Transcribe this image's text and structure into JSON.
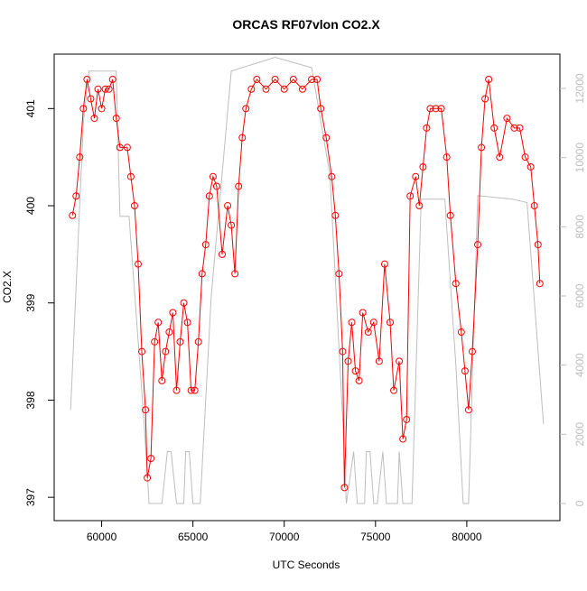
{
  "chart_data": {
    "type": "scatter",
    "title": "ORCAS RF07vlon CO2.X",
    "x_label": "UTC Seconds",
    "y_label": "CO2.X",
    "xlim": [
      57400,
      85100
    ],
    "xticks": [
      60000,
      65000,
      70000,
      75000,
      80000
    ],
    "ylim": [
      396.76,
      401.56
    ],
    "yticks": [
      397,
      398,
      399,
      400,
      401
    ],
    "y2lim": [
      -496,
      12991
    ],
    "y2ticks": [
      0,
      2000,
      4000,
      6000,
      8000,
      10000,
      12000
    ],
    "series": [
      {
        "color": "#ff0000",
        "x": [
          58400,
          58600,
          58800,
          59000,
          59200,
          59400,
          59600,
          59800,
          60000,
          60200,
          60400,
          60600,
          60800,
          61000,
          61400,
          61600,
          61800,
          62000,
          62200,
          62400,
          62500,
          62700,
          62900,
          63100,
          63300,
          63500,
          63700,
          63900,
          64100,
          64300,
          64500,
          64700,
          64900,
          65100,
          65300,
          65500,
          65700,
          65900,
          66100,
          66300,
          66600,
          66900,
          67100,
          67300,
          67500,
          67700,
          67900,
          68200,
          68500,
          69000,
          69500,
          70000,
          70500,
          71000,
          71500,
          71800,
          72000,
          72300,
          72600,
          72800,
          73000,
          73200,
          73300,
          73500,
          73700,
          73900,
          74100,
          74300,
          74600,
          74900,
          75200,
          75500,
          75800,
          76000,
          76300,
          76500,
          76700,
          76900,
          77200,
          77400,
          77600,
          77800,
          78000,
          78300,
          78600,
          78900,
          79100,
          79400,
          79700,
          79900,
          80100,
          80300,
          80600,
          80800,
          81000,
          81200,
          81500,
          81800,
          82200,
          82600,
          82900,
          83200,
          83500,
          83700,
          83900,
          84000
        ],
        "values": [
          399.9,
          400.1,
          400.5,
          401.0,
          401.3,
          401.1,
          400.9,
          401.2,
          401.0,
          401.2,
          401.2,
          401.3,
          400.9,
          400.6,
          400.6,
          400.3,
          400.0,
          399.4,
          398.5,
          397.9,
          397.2,
          397.4,
          398.6,
          398.8,
          398.2,
          398.5,
          398.7,
          398.9,
          398.1,
          398.6,
          399.0,
          398.8,
          398.1,
          398.1,
          398.6,
          399.3,
          399.6,
          400.1,
          400.3,
          400.2,
          399.5,
          400.0,
          399.8,
          399.3,
          400.2,
          400.7,
          401.0,
          401.2,
          401.3,
          401.2,
          401.3,
          401.2,
          401.3,
          401.2,
          401.3,
          401.3,
          401.0,
          400.7,
          400.3,
          399.9,
          399.3,
          398.5,
          397.1,
          398.4,
          398.8,
          398.3,
          398.2,
          398.9,
          398.7,
          398.8,
          398.4,
          399.4,
          398.8,
          398.1,
          398.4,
          397.6,
          397.8,
          400.1,
          400.3,
          400.0,
          400.4,
          400.8,
          401.0,
          401.0,
          401.0,
          400.5,
          399.9,
          399.2,
          398.7,
          398.3,
          397.9,
          398.5,
          399.6,
          400.6,
          401.1,
          401.3,
          400.8,
          400.5,
          400.9,
          400.8,
          400.8,
          400.5,
          400.4,
          400.0,
          399.6,
          399.2
        ]
      },
      {
        "color": "#bebebe",
        "axis": "y2",
        "x": [
          58300,
          59000,
          59300,
          60800,
          61000,
          61500,
          62300,
          62600,
          63300,
          63600,
          63800,
          64100,
          64500,
          64600,
          64800,
          65000,
          65400,
          66000,
          67100,
          69500,
          71500,
          72500,
          73200,
          73400,
          73800,
          74000,
          74400,
          74500,
          74700,
          74900,
          75100,
          75400,
          75600,
          76200,
          76300,
          76500,
          77000,
          77500,
          78800,
          79400,
          79800,
          80100,
          80600,
          82500,
          83300,
          84200
        ],
        "values": [
          2700,
          11000,
          12500,
          12500,
          8300,
          8300,
          2500,
          0,
          0,
          1500,
          1500,
          0,
          0,
          1500,
          1500,
          0,
          0,
          6000,
          12500,
          12900,
          12600,
          9500,
          2500,
          0,
          1500,
          0,
          0,
          1500,
          1500,
          0,
          0,
          1500,
          0,
          0,
          1500,
          0,
          0,
          8800,
          8800,
          4000,
          0,
          0,
          8900,
          8800,
          8700,
          2300
        ]
      }
    ]
  }
}
